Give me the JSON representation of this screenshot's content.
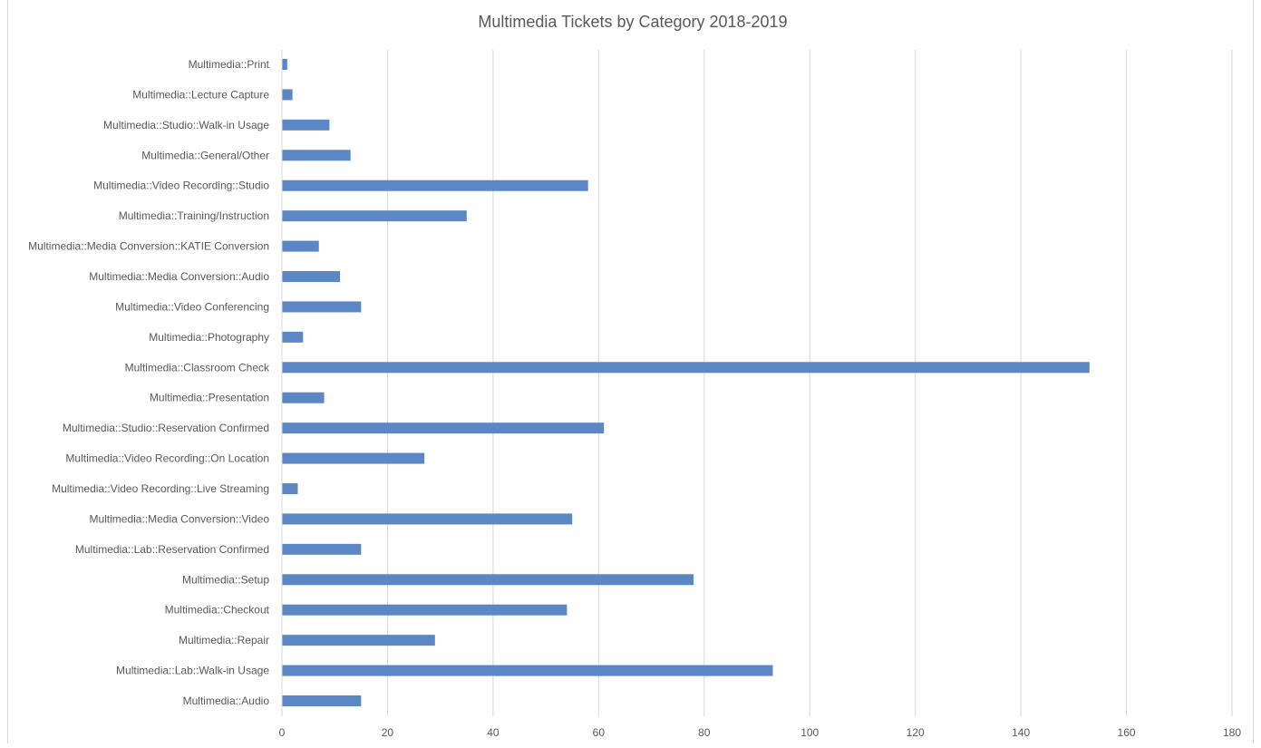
{
  "chart_data": {
    "type": "bar",
    "orientation": "horizontal",
    "title": "Multimedia Tickets by Category 2018-2019",
    "xlabel": "",
    "ylabel": "",
    "xlim": [
      0,
      180
    ],
    "ticks": [
      0,
      20,
      40,
      60,
      80,
      100,
      120,
      140,
      160,
      180
    ],
    "grid": true,
    "legend": "none",
    "bar_color": "#5b87c5",
    "categories": [
      "Multimedia::Print",
      "Multimedia::Lecture Capture",
      "Multimedia::Studio::Walk-in Usage",
      "Multimedia::General/Other",
      "Multimedia::Video Recording::Studio",
      "Multimedia::Training/Instruction",
      "Multimedia::Media Conversion::KATIE Conversion",
      "Multimedia::Media Conversion::Audio",
      "Multimedia::Video Conferencing",
      "Multimedia::Photography",
      "Multimedia::Classroom Check",
      "Multimedia::Presentation",
      "Multimedia::Studio::Reservation Confirmed",
      "Multimedia::Video Recording::On Location",
      "Multimedia::Video Recording::Live Streaming",
      "Multimedia::Media Conversion::Video",
      "Multimedia::Lab::Reservation Confirmed",
      "Multimedia::Setup",
      "Multimedia::Checkout",
      "Multimedia::Repair",
      "Multimedia::Lab::Walk-in Usage",
      "Multimedia::Audio"
    ],
    "values": [
      1,
      2,
      9,
      13,
      58,
      35,
      7,
      11,
      15,
      4,
      153,
      8,
      61,
      27,
      3,
      55,
      15,
      78,
      54,
      29,
      93,
      15
    ]
  }
}
